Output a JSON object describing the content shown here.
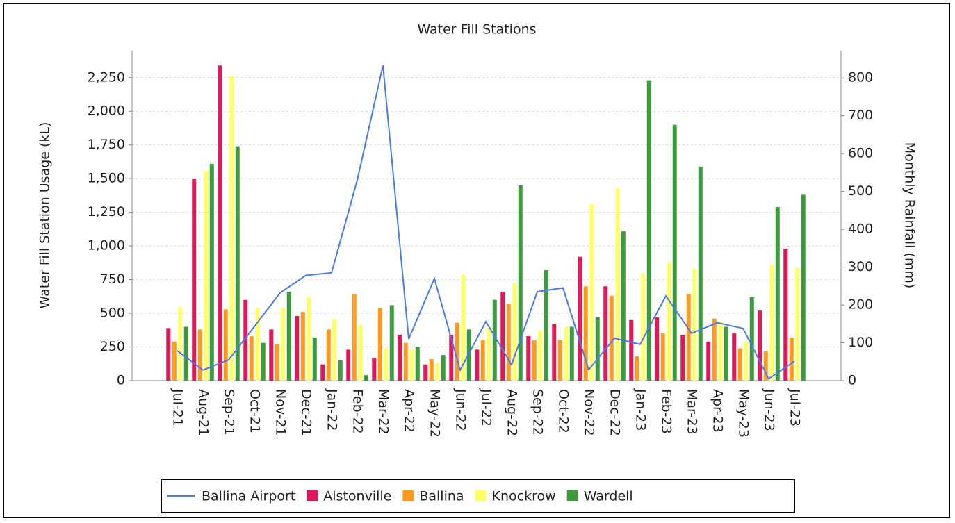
{
  "chart_data": {
    "type": "bar",
    "title": "Water Fill Stations",
    "y_label": "Water Fill Station Usage (kL)",
    "y2_label": "Monthly Rainfall (mm)",
    "categories": [
      "Jul-21",
      "Aug-21",
      "Sep-21",
      "Oct-21",
      "Nov-21",
      "Dec-21",
      "Jan-22",
      "Feb-22",
      "Mar-22",
      "Apr-22",
      "May-22",
      "Jun-22",
      "Jul-22",
      "Aug-22",
      "Sep-22",
      "Oct-22",
      "Nov-22",
      "Dec-22",
      "Jan-23",
      "Feb-23",
      "Mar-23",
      "Apr-23",
      "May-23",
      "Jun-23",
      "Jul-23"
    ],
    "series": [
      {
        "name": "Ballina Airport",
        "type": "line",
        "axis": "y2",
        "color": "#4a78f5",
        "values": [
          79,
          28,
          55,
          143,
          232,
          278,
          285,
          530,
          833,
          110,
          270,
          28,
          156,
          42,
          235,
          245,
          29,
          112,
          96,
          224,
          125,
          153,
          138,
          5,
          51
        ]
      },
      {
        "name": "Alstonville",
        "color": "#e2185b",
        "values": [
          390,
          1500,
          2340,
          600,
          380,
          480,
          120,
          230,
          170,
          340,
          120,
          340,
          230,
          660,
          330,
          420,
          920,
          700,
          450,
          470,
          340,
          290,
          350,
          520,
          980
        ]
      },
      {
        "name": "Ballina",
        "color": "#ff9a1e",
        "values": [
          290,
          380,
          530,
          330,
          270,
          510,
          380,
          640,
          540,
          280,
          160,
          430,
          300,
          570,
          300,
          300,
          700,
          630,
          180,
          350,
          640,
          460,
          240,
          220,
          320
        ]
      },
      {
        "name": "Knockrow",
        "color": "#ffff66",
        "values": [
          550,
          1560,
          2260,
          540,
          540,
          620,
          460,
          410,
          240,
          230,
          130,
          790,
          400,
          720,
          370,
          400,
          1310,
          1430,
          800,
          880,
          830,
          440,
          290,
          860,
          840
        ]
      },
      {
        "name": "Wardell",
        "color": "#3c9b3c",
        "values": [
          400,
          1610,
          1740,
          280,
          660,
          320,
          150,
          40,
          560,
          250,
          190,
          380,
          600,
          1450,
          820,
          400,
          470,
          1110,
          2230,
          1900,
          1590,
          400,
          620,
          1290,
          1380
        ]
      }
    ],
    "ylim": [
      0,
      2450
    ],
    "yticks": [
      0,
      250,
      500,
      750,
      {
        "value": 1000,
        "label": "1,000"
      },
      {
        "value": 1250,
        "label": "1,250"
      },
      {
        "value": 1500,
        "label": "1,500"
      },
      {
        "value": 1750,
        "label": "1,750"
      },
      {
        "value": 2000,
        "label": "2,000"
      },
      {
        "value": 2250,
        "label": "2,250"
      }
    ],
    "y2lim": [
      0,
      872
    ],
    "y2ticks": [
      0,
      100,
      200,
      300,
      400,
      500,
      600,
      700,
      800
    ],
    "grid": true,
    "legend": "bottom"
  }
}
